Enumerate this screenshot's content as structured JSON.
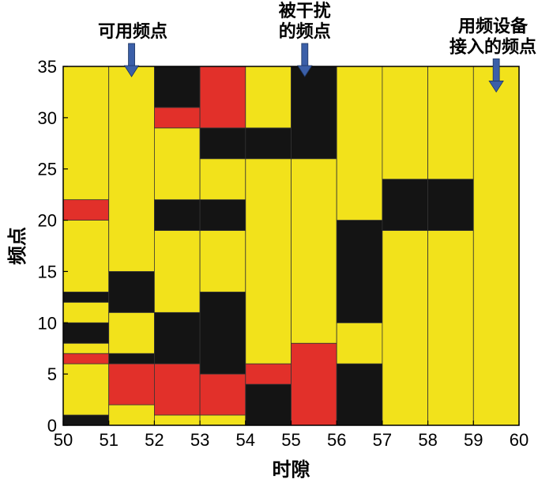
{
  "chart_data": {
    "type": "heatmap",
    "title": "",
    "xlabel": "时隙",
    "ylabel": "频点",
    "xlim": [
      50,
      60
    ],
    "ylim": [
      0,
      35
    ],
    "xticks": [
      "50",
      "51",
      "52",
      "53",
      "54",
      "55",
      "56",
      "57",
      "58",
      "59",
      "60"
    ],
    "yticks": [
      "0",
      "5",
      "10",
      "15",
      "20",
      "25",
      "30",
      "35"
    ],
    "columns": [
      50,
      51,
      52,
      53,
      54,
      55,
      56,
      57,
      58,
      59
    ],
    "colors": {
      "available": "#f2e21b",
      "interfered": "#e2302a",
      "occupied": "#141414"
    },
    "annotations": [
      {
        "lines": [
          "可用频点"
        ],
        "x": 51.5,
        "y": 34
      },
      {
        "lines": [
          "被干扰",
          "的频点"
        ],
        "x": 55.3,
        "y": 34
      },
      {
        "lines": [
          "用频设备",
          "接入的频点"
        ],
        "x": 59.5,
        "y": 32.5
      }
    ],
    "state_codes": {
      "Y": "available",
      "R": "interfered",
      "B": "occupied"
    },
    "grid": [
      "BYYYYYRYBBYYBYYYYYYYRRYYYYYYYYYYYYY",
      "YYRRRRBYYYYBBBBYYYYYYYYYYYYYYYYYYYY",
      "YRRRRRBBBBBYYYYYYYYBBBYYYYYYYRRBBBB",
      "YRRRRBBBBBBBBYYYYYYBBBYYYYBBBRRRRRR",
      "BBBBRRYYYYYYYYYYYYYYYYYYYYBBBYYYYYY",
      "RRRRRRRRYYYYYYYYYYYYYYYYYYBBBBBBBBB",
      "BBBBBBYYYYBBBBBBBBBBYYYYYYYYYYYYYYY",
      "YYYYYYYYYYYYYYYYYYYBBBBBYYYYYYYYYYY",
      "YYYYYYYYYYYYYYYYYYYBBBBBYYYYYYYYYYY",
      "YYYYYYYYYYYYYYYYYYYYYYYYYYYYYYYYYYY"
    ]
  }
}
